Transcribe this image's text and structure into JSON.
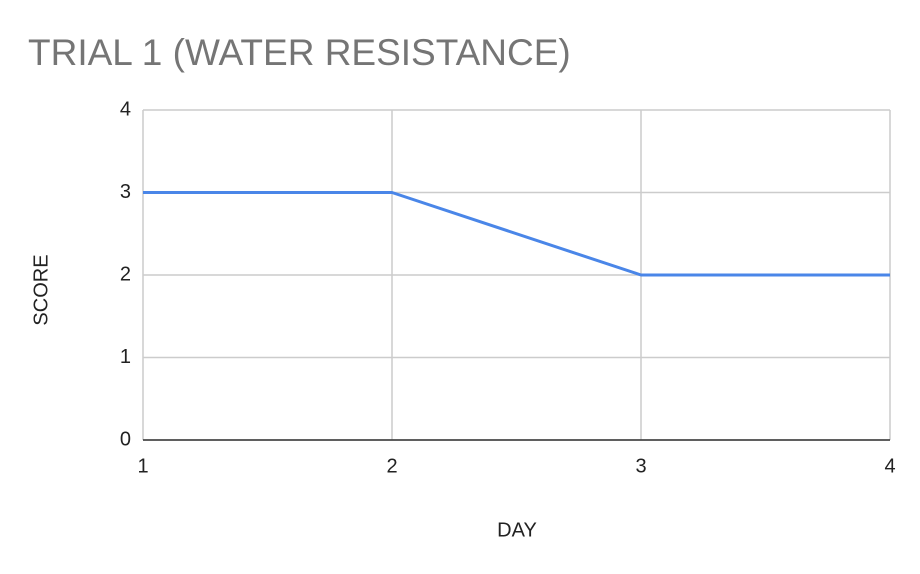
{
  "chart_data": {
    "type": "line",
    "title": "TRIAL 1 (WATER RESISTANCE)",
    "x_label": "DAY",
    "y_label": "SCORE",
    "x": [
      1,
      2,
      3,
      4
    ],
    "values": [
      3,
      3,
      2,
      2
    ],
    "color": "#4a86e8",
    "xlim": [
      1,
      4
    ],
    "xticks": [
      1,
      2,
      3,
      4
    ],
    "ylim": [
      0,
      4
    ],
    "yticks": [
      0,
      1,
      2,
      3,
      4
    ],
    "grid": true
  }
}
